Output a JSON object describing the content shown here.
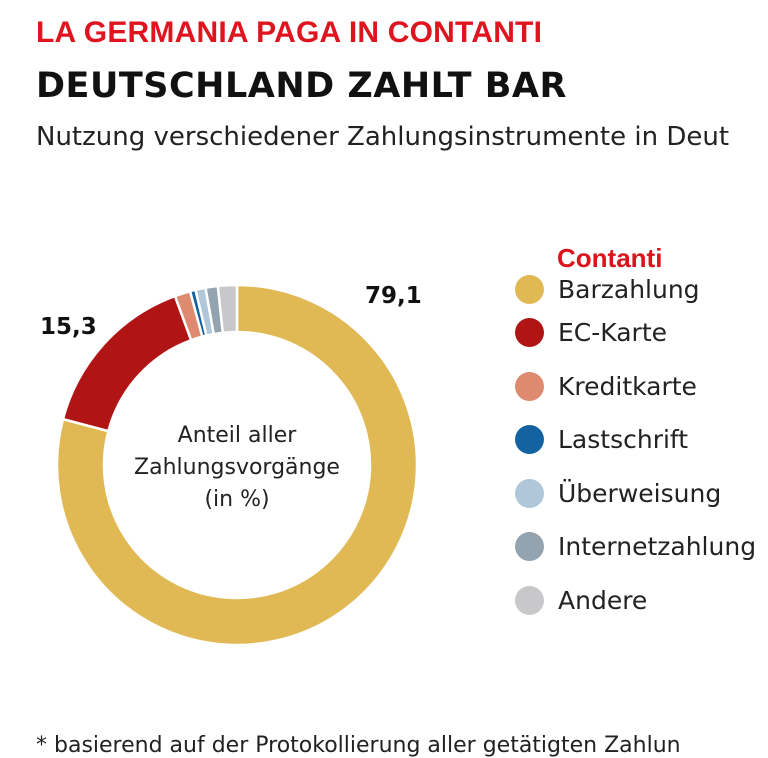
{
  "header": {
    "overlay_title": "LA GERMANIA PAGA IN CONTANTI",
    "title": "DEUTSCHLAND ZAHLT BAR",
    "subtitle": "Nutzung verschiedener Zahlungsinstrumente in Deut"
  },
  "chart_data": {
    "type": "pie",
    "variant": "donut",
    "title": "DEUTSCHLAND ZAHLT BAR",
    "subtitle": "Nutzung verschiedener Zahlungsinstrumente in Deut",
    "center_label": [
      "Anteil aller",
      "Zahlungsvorgänge",
      "(in %)"
    ],
    "legend_title": "Contanti",
    "legend_position": "right",
    "series": [
      {
        "name": "Barzahlung",
        "value": 79.1,
        "color": "#e0b955",
        "label": "79,1"
      },
      {
        "name": "EC-Karte",
        "value": 15.3,
        "color": "#b01414",
        "label": "15,3"
      },
      {
        "name": "Kreditkarte",
        "value": 1.4,
        "color": "#de8a70",
        "label": ""
      },
      {
        "name": "Lastschrift",
        "value": 0.5,
        "color": "#1462a0",
        "label": ""
      },
      {
        "name": "Überweisung",
        "value": 0.9,
        "color": "#afc7d8",
        "label": ""
      },
      {
        "name": "Internetzahlung",
        "value": 1.1,
        "color": "#93a3af",
        "label": ""
      },
      {
        "name": "Andere",
        "value": 1.7,
        "color": "#c8c8ca",
        "label": ""
      }
    ]
  },
  "footnote": "* basierend auf der Protokollierung aller getätigten Zahlun"
}
